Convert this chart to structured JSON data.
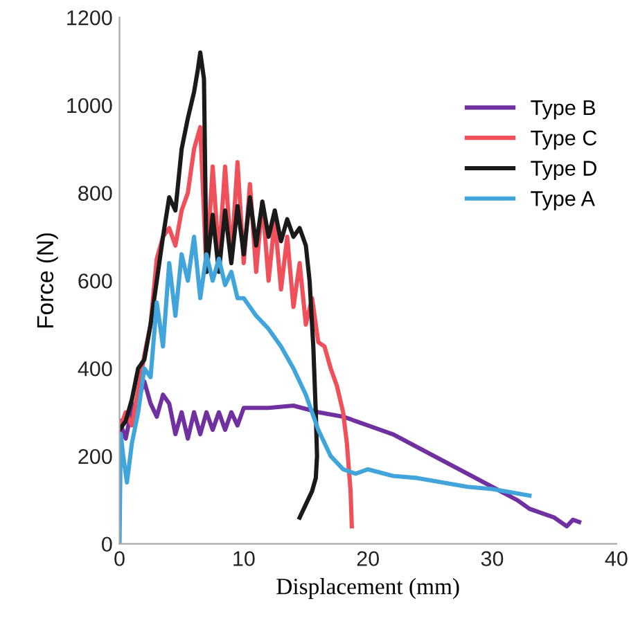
{
  "chart_data": {
    "type": "line",
    "xlabel": "Displacement (mm)",
    "ylabel": "Force (N)",
    "xlim": [
      0,
      40
    ],
    "xticks": [
      0,
      10,
      20,
      30,
      40
    ],
    "ylim": [
      0,
      1200
    ],
    "yticks": [
      0,
      200,
      400,
      600,
      800,
      1000,
      1200
    ],
    "grid": false,
    "legend": "upper right",
    "marker": "none",
    "line_style": "solid",
    "series": [
      {
        "name": "Type B",
        "color": "#7030a0",
        "x": [
          0,
          0.5,
          1,
          1.5,
          2,
          2.5,
          3,
          3.5,
          4,
          4.5,
          5,
          5.5,
          6,
          6.5,
          7,
          7.5,
          8,
          8.5,
          9,
          9.5,
          10,
          12,
          14,
          16,
          18,
          20,
          22,
          24,
          26,
          28,
          30,
          32,
          33,
          34,
          35,
          36,
          36.5,
          37
        ],
        "values": [
          280,
          240,
          310,
          330,
          370,
          320,
          290,
          340,
          320,
          250,
          300,
          240,
          300,
          250,
          300,
          260,
          300,
          260,
          300,
          270,
          310,
          310,
          315,
          300,
          290,
          270,
          250,
          220,
          190,
          160,
          130,
          100,
          80,
          70,
          60,
          40,
          55,
          50
        ]
      },
      {
        "name": "Type C",
        "color": "#f0505a",
        "x": [
          0,
          0.5,
          1,
          1.5,
          2,
          2.5,
          3,
          3.5,
          4,
          4.5,
          5,
          5.5,
          6,
          6.5,
          7,
          7.5,
          8,
          8.5,
          9,
          9.5,
          10,
          10.5,
          11,
          11.5,
          12,
          12.5,
          13,
          13.5,
          14,
          14.5,
          15,
          15.5,
          16,
          16.5,
          17,
          17.5,
          18,
          18.3,
          18.6,
          18.7
        ],
        "values": [
          260,
          300,
          270,
          350,
          430,
          500,
          650,
          700,
          720,
          680,
          760,
          800,
          900,
          950,
          620,
          860,
          650,
          860,
          650,
          870,
          640,
          820,
          620,
          780,
          600,
          740,
          580,
          700,
          540,
          640,
          500,
          560,
          460,
          450,
          400,
          360,
          300,
          230,
          120,
          40
        ]
      },
      {
        "name": "Type D",
        "color": "#1a1a1a",
        "x": [
          0,
          0.5,
          1,
          1.5,
          2,
          2.5,
          3,
          3.5,
          4,
          4.5,
          5,
          5.5,
          6,
          6.3,
          6.5,
          6.8,
          7,
          7.5,
          8,
          8.5,
          9,
          9.5,
          10,
          10.5,
          11,
          11.5,
          12,
          12.5,
          13,
          13.5,
          14,
          14.5,
          15,
          15.3,
          15.6,
          15.8,
          15.9,
          15.8,
          15.5,
          15,
          14.5
        ],
        "values": [
          260,
          280,
          330,
          400,
          420,
          500,
          600,
          700,
          790,
          760,
          900,
          970,
          1030,
          1080,
          1120,
          1060,
          620,
          750,
          620,
          760,
          640,
          770,
          660,
          790,
          680,
          780,
          700,
          760,
          690,
          740,
          700,
          720,
          680,
          600,
          450,
          300,
          200,
          150,
          120,
          90,
          60
        ]
      },
      {
        "name": "Type A",
        "color": "#41a5dc",
        "x": [
          0,
          0.1,
          0.3,
          0.6,
          1,
          1.5,
          2,
          2.5,
          3,
          3.5,
          4,
          4.5,
          5,
          5.5,
          6,
          6.5,
          7,
          7.5,
          8,
          8.5,
          9,
          9.5,
          10,
          11,
          12,
          13,
          14,
          15,
          16,
          17,
          18,
          19,
          20,
          22,
          24,
          26,
          28,
          30,
          32,
          33
        ],
        "values": [
          0,
          250,
          200,
          140,
          230,
          300,
          400,
          380,
          550,
          450,
          640,
          520,
          660,
          600,
          700,
          560,
          660,
          600,
          650,
          590,
          620,
          560,
          560,
          520,
          490,
          450,
          400,
          340,
          260,
          200,
          170,
          160,
          170,
          155,
          150,
          140,
          130,
          125,
          115,
          110
        ]
      }
    ]
  }
}
